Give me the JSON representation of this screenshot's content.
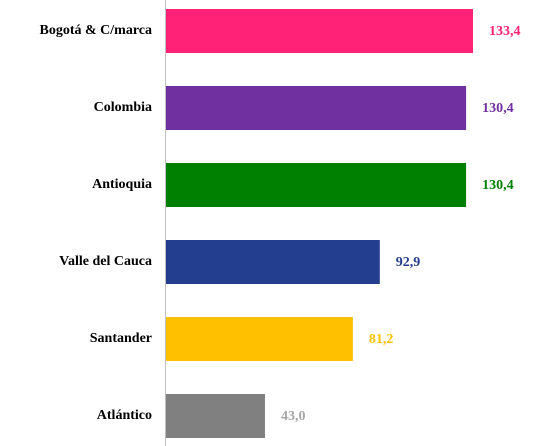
{
  "chart_data": {
    "type": "hbar",
    "categories": [
      "Bogotá & C/marca",
      "Colombia",
      "Antioquia",
      "Valle del Cauca",
      "Santander",
      "Atlántico"
    ],
    "values": [
      133.4,
      130.4,
      130.4,
      92.9,
      81.2,
      43.0
    ],
    "value_labels": [
      "133,4",
      "130,4",
      "130,4",
      "92,9",
      "81,2",
      "43,0"
    ],
    "colors": [
      "#ff2277",
      "#7030a0",
      "#008000",
      "#233e8e",
      "#ffc000",
      "#808080"
    ],
    "label_colors": [
      "#ff2277",
      "#7030a0",
      "#008000",
      "#233e8e",
      "#ffc000",
      "#a6a6a6"
    ]
  }
}
